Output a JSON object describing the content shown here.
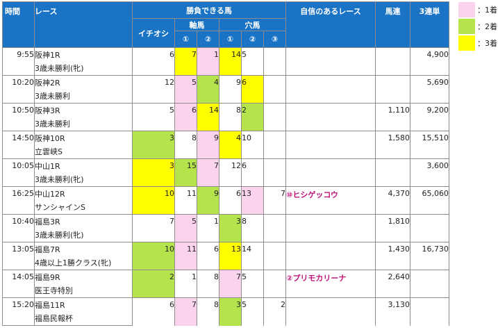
{
  "headers": {
    "time": "時間",
    "race": "レース",
    "kachi": "勝負できる馬",
    "ichioshi": "イチオシ",
    "jiku": "軸馬",
    "ana": "穴馬",
    "c1": "①",
    "c2": "②",
    "c3": "③",
    "confident": "自信のあるレース",
    "baren": "馬連",
    "sanren": "3連単"
  },
  "legend": [
    {
      "label": "：1着",
      "color": "#fbd3ec"
    },
    {
      "label": "：2着",
      "color": "#b5e34c"
    },
    {
      "label": "：3着",
      "color": "#ffff00"
    }
  ],
  "rows": [
    {
      "time": "9:55",
      "race": "阪神1R",
      "sub": "3歳未勝利(牝)",
      "ichioshi": "6",
      "jiku1": "7",
      "jiku2": "1",
      "ana1": "14",
      "ana2": "5",
      "ana3": "",
      "conf": "",
      "baren": "",
      "sanren": "4,900",
      "cols": {
        "ichioshi": "",
        "jiku1": "c3",
        "jiku2": "c1",
        "ana1": "c3",
        "ana2": "",
        "ana3": ""
      }
    },
    {
      "time": "10:20",
      "race": "阪神2R",
      "sub": "3歳未勝利",
      "ichioshi": "12",
      "jiku1": "5",
      "jiku2": "4",
      "ana1": "9",
      "ana2": "6",
      "ana3": "",
      "conf": "",
      "baren": "",
      "sanren": "5,690",
      "cols": {
        "ichioshi": "",
        "jiku1": "c1",
        "jiku2": "c2",
        "ana1": "",
        "ana2": "c3",
        "ana3": ""
      }
    },
    {
      "time": "10:50",
      "race": "阪神3R",
      "sub": "3歳未勝利",
      "ichioshi": "5",
      "jiku1": "6",
      "jiku2": "14",
      "ana1": "8",
      "ana2": "2",
      "ana3": "",
      "conf": "",
      "baren": "1,110",
      "sanren": "9,200",
      "cols": {
        "ichioshi": "",
        "jiku1": "c1",
        "jiku2": "c3",
        "ana1": "",
        "ana2": "c2",
        "ana3": ""
      }
    },
    {
      "time": "14:50",
      "race": "阪神10R",
      "sub": "立雲峡S",
      "ichioshi": "3",
      "jiku1": "8",
      "jiku2": "9",
      "ana1": "4",
      "ana2": "10",
      "ana3": "",
      "conf": "",
      "baren": "1,580",
      "sanren": "15,510",
      "cols": {
        "ichioshi": "c2",
        "jiku1": "",
        "jiku2": "c1",
        "ana1": "c3",
        "ana2": "",
        "ana3": ""
      }
    },
    {
      "time": "10:05",
      "race": "中山1R",
      "sub": "3歳未勝利(牝)",
      "ichioshi": "3",
      "jiku1": "15",
      "jiku2": "7",
      "ana1": "12",
      "ana2": "6",
      "ana3": "",
      "conf": "",
      "baren": "",
      "sanren": "3,600",
      "cols": {
        "ichioshi": "c3",
        "jiku1": "c2",
        "jiku2": "c1",
        "ana1": "",
        "ana2": "",
        "ana3": ""
      }
    },
    {
      "time": "16:25",
      "race": "中山12R",
      "sub": "サンシャインS",
      "ichioshi": "10",
      "jiku1": "11",
      "jiku2": "9",
      "ana1": "6",
      "ana2": "13",
      "ana3": "7",
      "conf": "⑩ヒシゲッコウ",
      "baren": "4,370",
      "sanren": "65,060",
      "cols": {
        "ichioshi": "c3",
        "jiku1": "",
        "jiku2": "c2",
        "ana1": "",
        "ana2": "c1",
        "ana3": ""
      }
    },
    {
      "time": "10:40",
      "race": "福島3R",
      "sub": "3歳未勝利(牝)",
      "ichioshi": "7",
      "jiku1": "5",
      "jiku2": "1",
      "ana1": "3",
      "ana2": "8",
      "ana3": "",
      "conf": "",
      "baren": "1,810",
      "sanren": "",
      "cols": {
        "ichioshi": "",
        "jiku1": "c1",
        "jiku2": "",
        "ana1": "c2",
        "ana2": "",
        "ana3": ""
      }
    },
    {
      "time": "13:05",
      "race": "福島7R",
      "sub": "4歳以上1勝クラス(牝)",
      "ichioshi": "10",
      "jiku1": "11",
      "jiku2": "6",
      "ana1": "13",
      "ana2": "14",
      "ana3": "",
      "conf": "",
      "baren": "1,430",
      "sanren": "16,730",
      "cols": {
        "ichioshi": "c2",
        "jiku1": "c1",
        "jiku2": "",
        "ana1": "c3",
        "ana2": "",
        "ana3": ""
      }
    },
    {
      "time": "14:05",
      "race": "福島9R",
      "sub": "医王寺特別",
      "ichioshi": "2",
      "jiku1": "1",
      "jiku2": "8",
      "ana1": "7",
      "ana2": "5",
      "ana3": "",
      "conf": "②プリモカリーナ",
      "baren": "2,640",
      "sanren": "",
      "cols": {
        "ichioshi": "c2",
        "jiku1": "",
        "jiku2": "",
        "ana1": "c1",
        "ana2": "",
        "ana3": ""
      }
    },
    {
      "time": "15:20",
      "race": "福島11R",
      "sub": "福島民報杯",
      "ichioshi": "6",
      "jiku1": "7",
      "jiku2": "8",
      "ana1": "3",
      "ana2": "5",
      "ana3": "2",
      "conf": "",
      "baren": "3,130",
      "sanren": "",
      "cols": {
        "ichioshi": "",
        "jiku1": "c1",
        "jiku2": "",
        "ana1": "c2",
        "ana2": "",
        "ana3": ""
      }
    }
  ]
}
